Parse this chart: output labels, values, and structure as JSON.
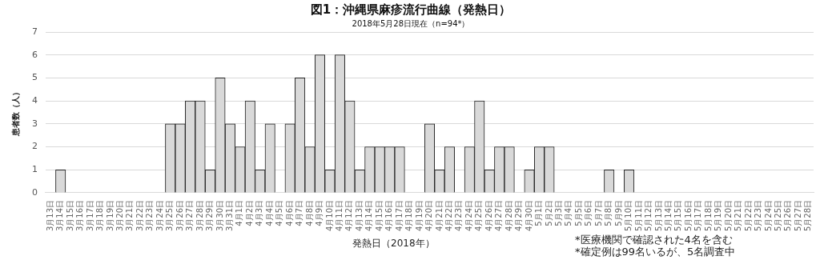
{
  "chart_data": {
    "type": "bar",
    "title": "図1：沖縄県麻疹流行曲線（発熱日）",
    "subtitle": "2018年5月28日現在（n=94*）",
    "xlabel": "発熱日（2018年）",
    "ylabel": "患者数（人）",
    "categories": [
      "3月13日",
      "3月14日",
      "3月15日",
      "3月16日",
      "3月17日",
      "3月18日",
      "3月19日",
      "3月20日",
      "3月21日",
      "3月22日",
      "3月23日",
      "3月24日",
      "3月25日",
      "3月26日",
      "3月27日",
      "3月28日",
      "3月29日",
      "3月30日",
      "3月31日",
      "4月1日",
      "4月2日",
      "4月3日",
      "4月4日",
      "4月5日",
      "4月6日",
      "4月7日",
      "4月8日",
      "4月9日",
      "4月10日",
      "4月11日",
      "4月12日",
      "4月13日",
      "4月14日",
      "4月15日",
      "4月16日",
      "4月17日",
      "4月18日",
      "4月19日",
      "4月20日",
      "4月21日",
      "4月22日",
      "4月23日",
      "4月24日",
      "4月25日",
      "4月26日",
      "4月27日",
      "4月28日",
      "4月29日",
      "4月30日",
      "5月1日",
      "5月2日",
      "5月3日",
      "5月4日",
      "5月5日",
      "5月6日",
      "5月7日",
      "5月8日",
      "5月9日",
      "5月10日",
      "5月11日",
      "5月12日",
      "5月13日",
      "5月14日",
      "5月15日",
      "5月16日",
      "5月17日",
      "5月18日",
      "5月19日",
      "5月20日",
      "5月21日",
      "5月22日",
      "5月23日",
      "5月24日",
      "5月25日",
      "5月26日",
      "5月27日",
      "5月28日"
    ],
    "values": [
      0,
      1,
      0,
      0,
      0,
      0,
      0,
      0,
      0,
      0,
      0,
      0,
      3,
      3,
      4,
      4,
      1,
      5,
      3,
      2,
      4,
      1,
      3,
      0,
      3,
      5,
      2,
      6,
      1,
      6,
      4,
      1,
      2,
      2,
      2,
      2,
      0,
      0,
      3,
      1,
      2,
      0,
      2,
      4,
      1,
      2,
      2,
      0,
      1,
      2,
      2,
      0,
      0,
      0,
      0,
      0,
      1,
      0,
      1,
      0,
      0,
      0,
      0,
      0,
      0,
      0,
      0,
      0,
      0,
      0,
      0,
      0,
      0,
      0,
      0,
      0,
      0
    ],
    "color": "#d9d9d9",
    "ylim": [
      0,
      7
    ],
    "yticks": [
      0,
      1,
      2,
      3,
      4,
      5,
      6,
      7
    ],
    "grid": "y",
    "legend": false,
    "annotations": [
      "*医療機関で確認された4名を含む",
      "*確定例は99名いるが、5名調査中"
    ]
  }
}
